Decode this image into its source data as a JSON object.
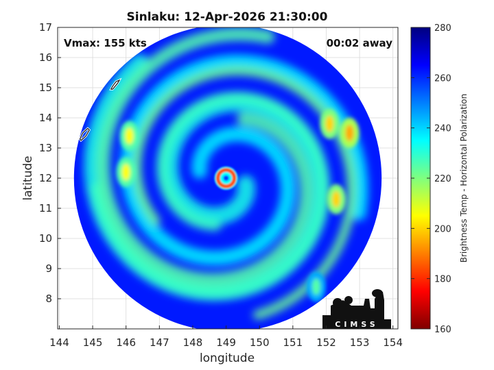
{
  "chart_data": {
    "type": "heatmap",
    "title": "Sinlaku: 12-Apr-2026 21:30:00",
    "xlabel": "longitude",
    "ylabel": "latitude",
    "xlim": [
      143.95,
      154.15
    ],
    "ylim": [
      7.0,
      17.0
    ],
    "xticks": [
      144,
      145,
      146,
      147,
      148,
      149,
      150,
      151,
      152,
      153,
      154
    ],
    "yticks": [
      8,
      9,
      10,
      11,
      12,
      13,
      14,
      15,
      16,
      17
    ],
    "annotations": {
      "vmax": "Vmax: 155 kts",
      "time_away": "00:02 away"
    },
    "storm_center": {
      "lon": 149.0,
      "lat": 12.0
    },
    "swath": {
      "center_lon": 149.05,
      "center_lat": 12.0,
      "radius_deg": 5.05
    },
    "colorbar": {
      "label": "Brightness Temp - Horizontal Polarization",
      "range": [
        160,
        280
      ],
      "ticks": [
        160,
        180,
        200,
        220,
        240,
        260,
        280
      ],
      "colormap": [
        "#7f0000",
        "#ff0000",
        "#ff7f00",
        "#ffff00",
        "#7fff7f",
        "#00ffff",
        "#007fff",
        "#0000ff",
        "#00007f"
      ]
    },
    "features": {
      "background_tb": 262,
      "eye_tb": 258,
      "eyewall_tb": 185,
      "rainbands": [
        {
          "lon": 146.1,
          "lat": 13.4,
          "tb": 205
        },
        {
          "lon": 146.0,
          "lat": 12.2,
          "tb": 205
        },
        {
          "lon": 152.3,
          "lat": 11.3,
          "tb": 200
        },
        {
          "lon": 152.7,
          "lat": 13.5,
          "tb": 195
        },
        {
          "lon": 152.1,
          "lat": 13.8,
          "tb": 200
        },
        {
          "lon": 151.7,
          "lat": 8.4,
          "tb": 225
        }
      ]
    },
    "islands": [
      {
        "lon": [
          145.6,
          145.75,
          145.8,
          145.7,
          145.6,
          145.55
        ],
        "lat": [
          14.95,
          15.15,
          15.25,
          15.2,
          15.05,
          14.95
        ]
      },
      {
        "lon": [
          144.65,
          144.8,
          144.9,
          144.85,
          144.7,
          144.62
        ],
        "lat": [
          13.25,
          13.4,
          13.6,
          13.65,
          13.5,
          13.3
        ]
      }
    ],
    "logo_text": "CIMSS"
  }
}
